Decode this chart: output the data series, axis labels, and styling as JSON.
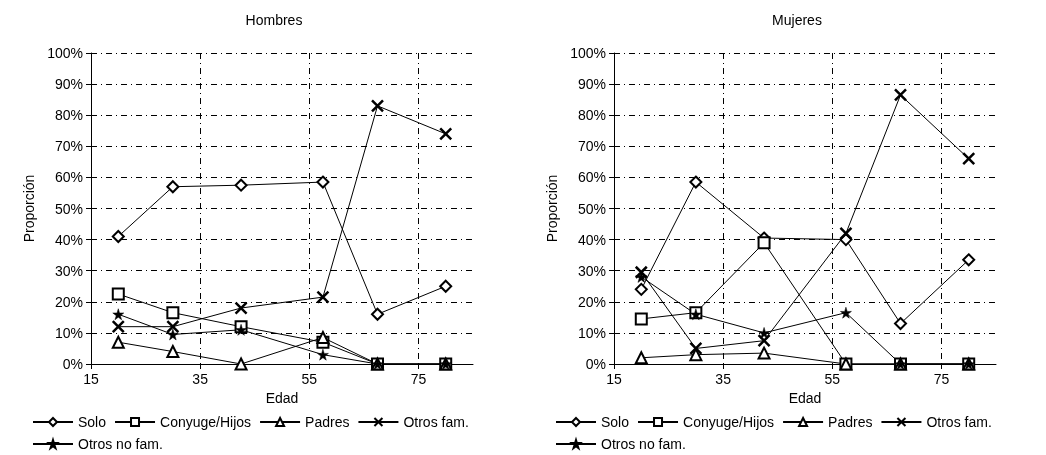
{
  "chart_data": [
    {
      "type": "line",
      "title": "Hombres",
      "xlabel": "Edad",
      "ylabel": "Proporción",
      "x": [
        20,
        30,
        42.5,
        57.5,
        67.5,
        80
      ],
      "xlim": [
        15,
        85
      ],
      "xticks": [
        15,
        35,
        55,
        75
      ],
      "ylim": [
        0,
        100
      ],
      "yticks": [
        {
          "value": 0,
          "label": "0%"
        },
        {
          "value": 10,
          "label": "10%"
        },
        {
          "value": 20,
          "label": "20%"
        },
        {
          "value": 30,
          "label": "30%"
        },
        {
          "value": 40,
          "label": "40%"
        },
        {
          "value": 50,
          "label": "50%"
        },
        {
          "value": 60,
          "label": "60%"
        },
        {
          "value": 70,
          "label": "70%"
        },
        {
          "value": 80,
          "label": "80%"
        },
        {
          "value": 90,
          "label": "90%"
        },
        {
          "value": 100,
          "label": "100%"
        }
      ],
      "grid": true,
      "legend": "bottom",
      "line_style": "solid",
      "series": [
        {
          "name": "Solo",
          "color": "#000000",
          "marker": "diamond",
          "values": [
            41,
            57,
            57.5,
            58.5,
            16,
            25
          ]
        },
        {
          "name": "Conyuge/Hijos",
          "color": "#000000",
          "marker": "square",
          "values": [
            22.5,
            16.5,
            12,
            7,
            0,
            0
          ]
        },
        {
          "name": "Padres",
          "color": "#000000",
          "marker": "triangle",
          "values": [
            7,
            4,
            0,
            8.5,
            0,
            0
          ]
        },
        {
          "name": "Otros fam.",
          "color": "#000000",
          "marker": "cross",
          "values": [
            12,
            12,
            18,
            21.5,
            83,
            74
          ]
        },
        {
          "name": "Otros no fam.",
          "color": "#000000",
          "marker": "star",
          "values": [
            16,
            9.5,
            11,
            3,
            0,
            0
          ]
        }
      ]
    },
    {
      "type": "line",
      "title": "Mujeres",
      "xlabel": "Edad",
      "ylabel": "Proporción",
      "x": [
        20,
        30,
        42.5,
        57.5,
        67.5,
        80
      ],
      "xlim": [
        15,
        85
      ],
      "xticks": [
        15,
        35,
        55,
        75
      ],
      "ylim": [
        0,
        100
      ],
      "yticks": [
        {
          "value": 0,
          "label": "0%"
        },
        {
          "value": 10,
          "label": "10%"
        },
        {
          "value": 20,
          "label": "20%"
        },
        {
          "value": 30,
          "label": "30%"
        },
        {
          "value": 40,
          "label": "40%"
        },
        {
          "value": 50,
          "label": "50%"
        },
        {
          "value": 60,
          "label": "60%"
        },
        {
          "value": 70,
          "label": "70%"
        },
        {
          "value": 80,
          "label": "80%"
        },
        {
          "value": 90,
          "label": "90%"
        },
        {
          "value": 100,
          "label": "100%"
        }
      ],
      "grid": true,
      "legend": "bottom",
      "line_style": "solid",
      "series": [
        {
          "name": "Solo",
          "color": "#000000",
          "marker": "diamond",
          "values": [
            24,
            58.5,
            40.5,
            40,
            13,
            33.5
          ]
        },
        {
          "name": "Conyuge/Hijos",
          "color": "#000000",
          "marker": "square",
          "values": [
            14.5,
            16.5,
            39,
            0,
            0,
            0
          ]
        },
        {
          "name": "Padres",
          "color": "#000000",
          "marker": "triangle",
          "values": [
            2,
            3,
            3.5,
            0,
            0,
            0
          ]
        },
        {
          "name": "Otros fam.",
          "color": "#000000",
          "marker": "cross",
          "values": [
            29.5,
            5,
            7.5,
            42,
            86.5,
            66
          ]
        },
        {
          "name": "Otros no fam.",
          "color": "#000000",
          "marker": "star",
          "values": [
            28,
            16,
            10,
            16.5,
            0,
            0
          ]
        }
      ]
    }
  ]
}
